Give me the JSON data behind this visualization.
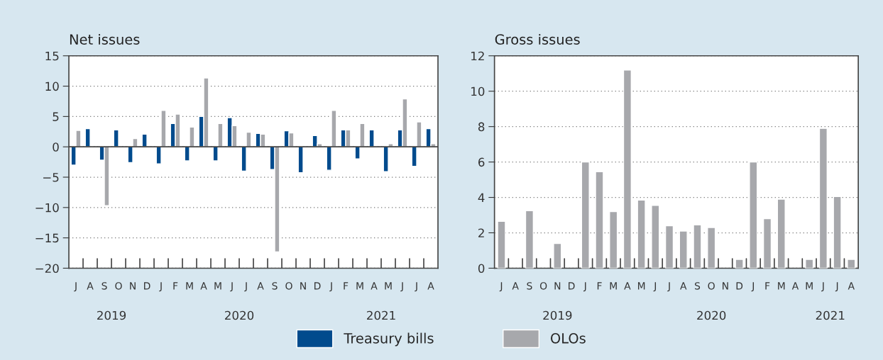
{
  "chart_data": [
    {
      "type": "bar",
      "title": "Net issues",
      "legend": "bottom",
      "grid": "y",
      "categories": [
        "J",
        "A",
        "S",
        "O",
        "N",
        "D",
        "J",
        "F",
        "M",
        "A",
        "M",
        "J",
        "J",
        "A",
        "S",
        "O",
        "N",
        "D",
        "J",
        "F",
        "M",
        "A",
        "M",
        "J",
        "J",
        "A"
      ],
      "series": [
        {
          "name": "Treasury bills",
          "color": "#004b8d",
          "values": [
            -3.0,
            3.0,
            -2.2,
            2.8,
            -2.6,
            2.1,
            -2.8,
            3.85,
            -2.3,
            5.0,
            -2.3,
            4.8,
            -4.0,
            2.2,
            -3.75,
            2.65,
            -4.25,
            1.85,
            -3.85,
            2.8,
            -2.0,
            2.8,
            -4.1,
            2.8,
            -3.2,
            3.0
          ]
        },
        {
          "name": "OLOs",
          "color": "#a7a8ac",
          "values": [
            2.7,
            null,
            -9.7,
            null,
            1.35,
            null,
            6.0,
            5.4,
            3.25,
            11.35,
            3.85,
            3.5,
            2.4,
            2.1,
            -17.3,
            2.3,
            null,
            0.5,
            6.0,
            2.8,
            3.85,
            null,
            0.5,
            7.9,
            4.1,
            0.5
          ]
        }
      ],
      "ylim": [
        -20,
        15
      ],
      "yticks": [
        {
          "value": -20,
          "label": "−20"
        },
        {
          "value": -15,
          "label": "−15"
        },
        {
          "value": -10,
          "label": "−10"
        },
        {
          "value": -5,
          "label": "−5"
        },
        0,
        5,
        10,
        15
      ],
      "annotations": [
        "2019",
        "2020",
        "2021"
      ]
    },
    {
      "type": "bar",
      "title": "Gross issues",
      "grid": "y",
      "categories": [
        "J",
        "A",
        "S",
        "O",
        "N",
        "D",
        "J",
        "F",
        "M",
        "A",
        "M",
        "J",
        "J",
        "A",
        "S",
        "O",
        "N",
        "D",
        "J",
        "F",
        "M",
        "A",
        "M",
        "J",
        "J",
        "A"
      ],
      "series": [
        {
          "color": "#a7a8ac",
          "values": [
            2.65,
            null,
            3.25,
            null,
            1.4,
            null,
            6.0,
            5.45,
            3.2,
            11.2,
            3.85,
            3.55,
            2.4,
            2.1,
            2.45,
            2.3,
            null,
            0.5,
            6.0,
            2.8,
            3.9,
            null,
            0.5,
            7.9,
            4.05,
            0.5
          ]
        }
      ],
      "ylim": [
        0,
        12
      ],
      "yticks": [
        0,
        2,
        4,
        6,
        8,
        10,
        12
      ],
      "annotations": [
        "2019",
        "2020",
        "2021"
      ]
    }
  ]
}
